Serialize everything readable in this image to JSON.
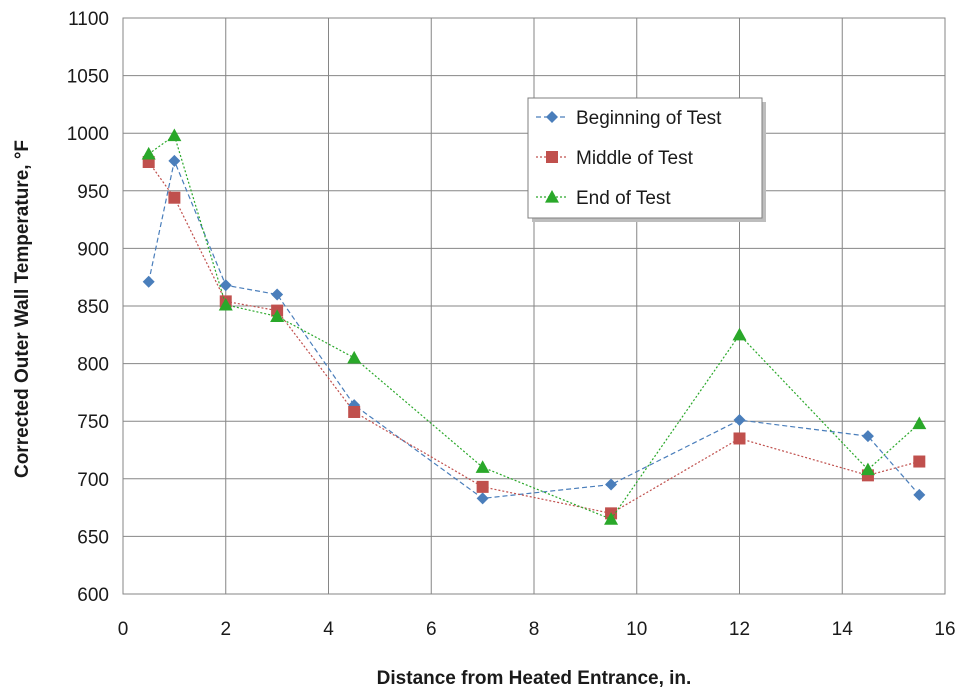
{
  "chart_data": {
    "type": "line",
    "title": "",
    "xlabel": "Distance from Heated Entrance, in.",
    "ylabel": "Corrected Outer Wall Temperature, °F",
    "xlim": [
      0,
      16
    ],
    "ylim": [
      600,
      1100
    ],
    "xticks": [
      0,
      2,
      4,
      6,
      8,
      10,
      12,
      14,
      16
    ],
    "yticks": [
      600,
      650,
      700,
      750,
      800,
      850,
      900,
      950,
      1000,
      1050,
      1100
    ],
    "grid": true,
    "legend_position": "upper-right",
    "x": [
      0.5,
      1,
      2,
      3,
      4.5,
      7,
      9.5,
      12,
      14.5,
      15.5
    ],
    "series": [
      {
        "name": "Beginning of Test",
        "color": "#4a7ebb",
        "marker": "diamond",
        "line": "dashed",
        "values": [
          871,
          976,
          868,
          860,
          764,
          683,
          695,
          751,
          737,
          686
        ]
      },
      {
        "name": "Middle of Test",
        "color": "#c0504d",
        "marker": "square",
        "line": "dotted",
        "values": [
          975,
          944,
          854,
          846,
          758,
          693,
          670,
          735,
          703,
          715
        ]
      },
      {
        "name": "End of Test",
        "color": "#2aa82a",
        "marker": "triangle",
        "line": "dotted",
        "values": [
          982,
          998,
          851,
          841,
          805,
          710,
          665,
          825,
          708,
          748
        ]
      }
    ]
  }
}
